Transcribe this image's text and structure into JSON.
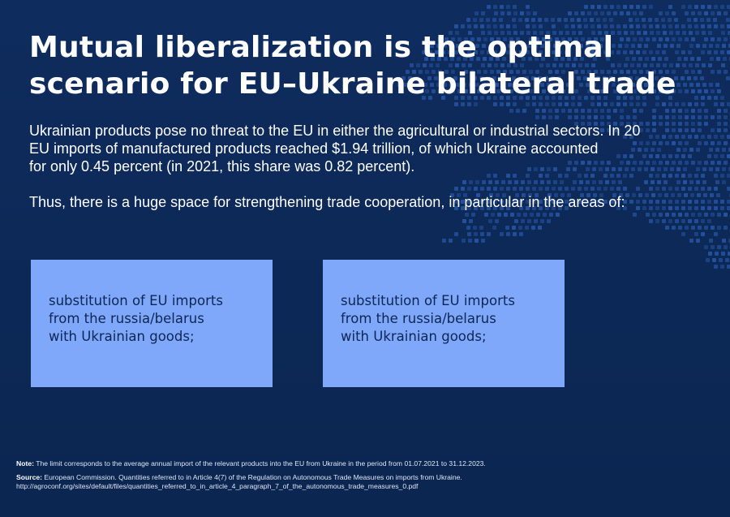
{
  "title": {
    "line1": "Mutual liberalization is the optimal",
    "line2": "scenario for EU–Ukraine bilateral trade"
  },
  "paragraph1": {
    "line1": "Ukrainian products pose no threat to the EU in either the agricultural or industrial sectors. In 20",
    "line2": "EU imports of manufactured products reached $1.94 trillion, of which Ukraine accounted",
    "line3": "for only 0.45 percent (in 2021, this share was 0.82 percent)."
  },
  "paragraph2": "Thus, there is a huge space for strengthening trade cooperation, in particular in the areas of:",
  "cards": [
    {
      "line1": "substitution of EU imports",
      "line2": "from the russia/belarus",
      "line3": "with Ukrainian goods;"
    },
    {
      "line1": "substitution of EU imports",
      "line2": "from the russia/belarus",
      "line3": "with Ukrainian goods;"
    }
  ],
  "footnotes": {
    "note_label": "Note:",
    "note_text": " The limit corresponds to the average annual import of the relevant products into the EU from Ukraine in the period from 01.07.2021 to 31.12.2023.",
    "source_label": "Source:",
    "source_text": " European Commission. Quantities referred to in Article 4(7) of the Regulation on Autonomous Trade Measures on imports from Ukraine.",
    "url": "http://agroconf.org/sites/default/files/quantities_referred_to_in_article_4_paragraph_7_of_the_autonomous_trade_measures_0.pdf"
  },
  "colors": {
    "background": "#0d2a5a",
    "card": "#7fa8fb",
    "card_text": "#0e2654",
    "map_dots": "#2a5cae"
  },
  "icons": {
    "background_map": "europe-dot-map-icon"
  }
}
